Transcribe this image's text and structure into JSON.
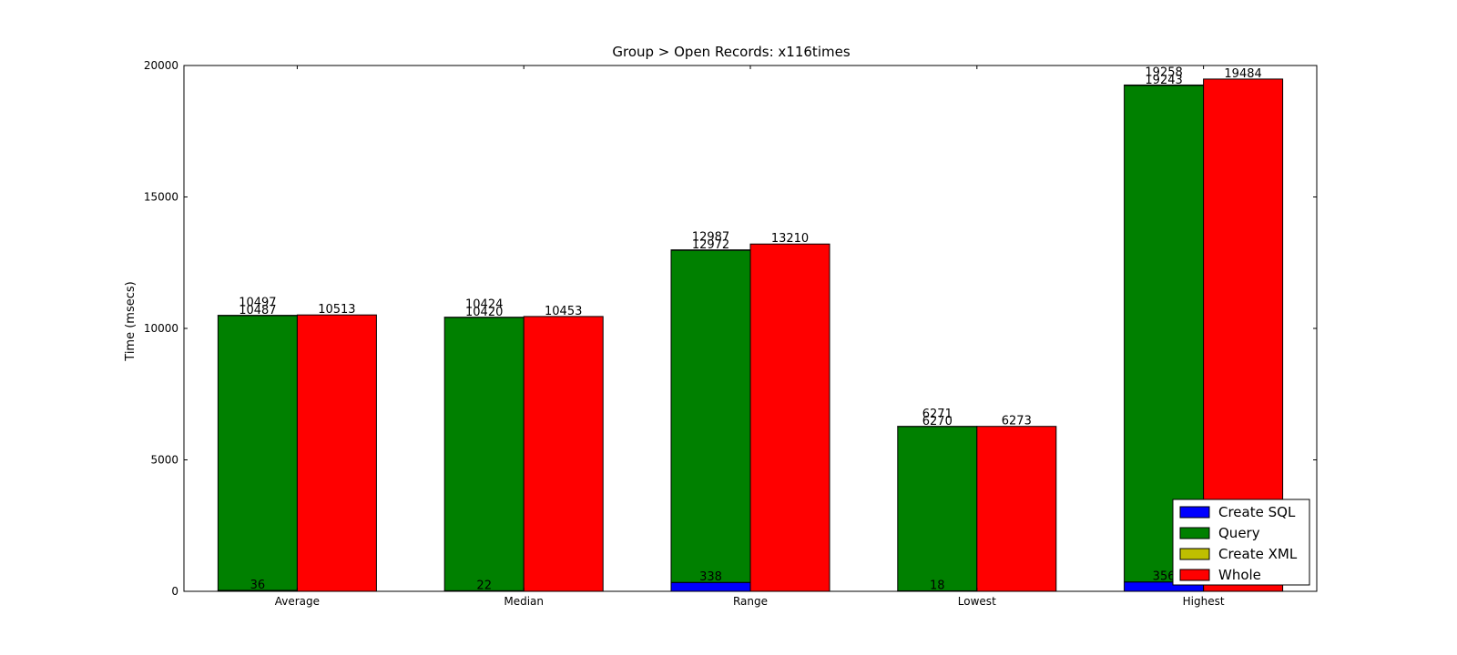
{
  "chart_data": {
    "type": "bar",
    "title": "Group > Open Records: x116times",
    "xlabel": "",
    "ylabel": "Time (msecs)",
    "ylim": [
      0,
      20000
    ],
    "yticks": [
      0,
      5000,
      10000,
      15000,
      20000
    ],
    "categories": [
      "Average",
      "Median",
      "Range",
      "Lowest",
      "Highest"
    ],
    "stacked_series": [
      {
        "name": "Create SQL",
        "color": "#0000ff",
        "values": [
          36,
          22,
          338,
          18,
          356
        ]
      },
      {
        "name": "Query",
        "color": "#008000",
        "values": [
          10451,
          10398,
          12634,
          6252,
          18887
        ]
      },
      {
        "name": "Create XML",
        "color": "#bfbf00",
        "values": [
          10,
          4,
          15,
          1,
          15
        ]
      }
    ],
    "whole_series": {
      "name": "Whole",
      "color": "#ff0000",
      "values": [
        10513,
        10453,
        13210,
        6273,
        19484
      ]
    },
    "labels": {
      "sql": [
        "36",
        "22",
        "338",
        "18",
        "356"
      ],
      "query_top": [
        "10487",
        "10420",
        "12972",
        "6270",
        "19243"
      ],
      "xml_top": [
        "10497",
        "10424",
        "12987",
        "6271",
        "19258"
      ],
      "whole": [
        "10513",
        "10453",
        "13210",
        "6273",
        "19484"
      ]
    },
    "legend": {
      "position": "lower-right",
      "entries": [
        {
          "label": "Create SQL",
          "color": "#0000ff"
        },
        {
          "label": "Query",
          "color": "#008000"
        },
        {
          "label": "Create XML",
          "color": "#bfbf00"
        },
        {
          "label": "Whole",
          "color": "#ff0000"
        }
      ]
    },
    "grid": false
  }
}
